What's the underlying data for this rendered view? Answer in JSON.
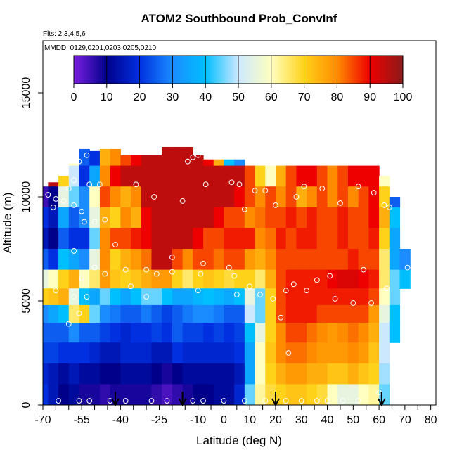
{
  "chart_data": {
    "type": "heatmap",
    "title": "ATOM2 Southbound Prob_ConvInf",
    "subtitle_flights": "Flts: 2,3,4,5,6",
    "subtitle_dates": "MMDD: 0129,0201,0203,0205,0210",
    "xlabel": "Latitude (deg N)",
    "ylabel": "Altitude (m)",
    "xlim": [
      -70,
      82
    ],
    "ylim": [
      0,
      17500
    ],
    "x_ticks": [
      -70,
      -55,
      -40,
      -25,
      -10,
      0,
      10,
      20,
      30,
      40,
      50,
      60,
      70,
      80
    ],
    "x_minor_ticks": [
      -65,
      -60,
      -50,
      -45,
      -35,
      -30,
      -20,
      -15,
      -5,
      5,
      15,
      25,
      35,
      45,
      55,
      65,
      75
    ],
    "y_ticks": [
      0,
      5000,
      10000,
      15000
    ],
    "colorbar": {
      "ticks": [
        0,
        10,
        20,
        30,
        40,
        50,
        60,
        70,
        80,
        90,
        100
      ],
      "range": [
        0,
        100
      ],
      "colors": [
        "#7a1fe0",
        "#00008b",
        "#0030e0",
        "#1a8cff",
        "#00bfff",
        "#cce8ff",
        "#ffffc0",
        "#ffd21a",
        "#ff8c00",
        "#ee0000",
        "#8b1a1a"
      ]
    },
    "arrows_lat": [
      -42,
      -16,
      20,
      61
    ],
    "curtain_columns": [
      {
        "lat": -69,
        "top": 10500
      },
      {
        "lat": -66,
        "top": 10700
      },
      {
        "lat": -62,
        "top": 11000
      },
      {
        "lat": -58,
        "top": 11600
      },
      {
        "lat": -54,
        "top": 12300
      },
      {
        "lat": -50,
        "top": 12200
      },
      {
        "lat": -46,
        "top": 12300
      },
      {
        "lat": -42,
        "top": 12300
      },
      {
        "lat": -38,
        "top": 12000
      },
      {
        "lat": -34,
        "top": 12000
      },
      {
        "lat": -30,
        "top": 12000
      },
      {
        "lat": -26,
        "top": 12000
      },
      {
        "lat": -22,
        "top": 12400
      },
      {
        "lat": -18,
        "top": 12400
      },
      {
        "lat": -14,
        "top": 12400
      },
      {
        "lat": -10,
        "top": 12000
      },
      {
        "lat": -6,
        "top": 11800
      },
      {
        "lat": -2,
        "top": 11800
      },
      {
        "lat": 2,
        "top": 11800
      },
      {
        "lat": 6,
        "top": 11800
      },
      {
        "lat": 10,
        "top": 11800
      },
      {
        "lat": 14,
        "top": 11800
      },
      {
        "lat": 18,
        "top": 11800
      },
      {
        "lat": 22,
        "top": 11500
      },
      {
        "lat": 26,
        "top": 11500
      },
      {
        "lat": 30,
        "top": 11500
      },
      {
        "lat": 34,
        "top": 11500
      },
      {
        "lat": 38,
        "top": 11500
      },
      {
        "lat": 42,
        "top": 11500
      },
      {
        "lat": 46,
        "top": 11500
      },
      {
        "lat": 50,
        "top": 11500
      },
      {
        "lat": 54,
        "top": 11500
      },
      {
        "lat": 58,
        "top": 11500
      },
      {
        "lat": 62,
        "top": 11000
      },
      {
        "lat": 66,
        "top": 10000
      },
      {
        "lat": 70,
        "top": 9000
      }
    ],
    "altitude_bands": [
      {
        "alt": 12000,
        "values": [
          95,
          95,
          85,
          60,
          25,
          20,
          75,
          80,
          85,
          90,
          95,
          95,
          95,
          95,
          95,
          95,
          90,
          75,
          40,
          30,
          0,
          0,
          0,
          0,
          0,
          0,
          0,
          0,
          0,
          0,
          0,
          0,
          0,
          0,
          0,
          0
        ]
      },
      {
        "alt": 11000,
        "values": [
          95,
          95,
          70,
          50,
          20,
          35,
          80,
          90,
          95,
          95,
          95,
          95,
          95,
          95,
          95,
          95,
          95,
          95,
          95,
          95,
          85,
          70,
          60,
          75,
          85,
          90,
          90,
          85,
          80,
          85,
          90,
          90,
          90,
          60,
          0,
          0
        ]
      },
      {
        "alt": 10000,
        "values": [
          5,
          10,
          55,
          45,
          30,
          60,
          85,
          80,
          75,
          80,
          95,
          95,
          95,
          95,
          95,
          95,
          95,
          95,
          95,
          90,
          85,
          80,
          85,
          80,
          85,
          75,
          80,
          85,
          80,
          85,
          80,
          85,
          90,
          70,
          25,
          0
        ]
      },
      {
        "alt": 9000,
        "values": [
          20,
          15,
          35,
          25,
          30,
          55,
          75,
          70,
          80,
          75,
          90,
          95,
          95,
          95,
          95,
          95,
          95,
          90,
          85,
          85,
          80,
          82,
          85,
          85,
          88,
          85,
          88,
          85,
          85,
          88,
          85,
          85,
          90,
          75,
          40,
          0
        ]
      },
      {
        "alt": 8000,
        "values": [
          15,
          10,
          25,
          20,
          20,
          45,
          80,
          85,
          85,
          88,
          90,
          95,
          95,
          95,
          95,
          90,
          85,
          85,
          88,
          88,
          88,
          80,
          82,
          88,
          85,
          88,
          88,
          85,
          85,
          88,
          85,
          85,
          88,
          70,
          35,
          0
        ]
      },
      {
        "alt": 7000,
        "values": [
          25,
          20,
          40,
          35,
          30,
          55,
          80,
          70,
          75,
          78,
          82,
          95,
          95,
          85,
          80,
          85,
          85,
          82,
          85,
          85,
          78,
          75,
          80,
          85,
          85,
          85,
          85,
          85,
          85,
          85,
          88,
          85,
          85,
          65,
          35,
          30
        ]
      },
      {
        "alt": 6000,
        "values": [
          55,
          60,
          70,
          75,
          60,
          65,
          78,
          72,
          70,
          72,
          75,
          78,
          78,
          70,
          65,
          70,
          72,
          70,
          68,
          70,
          70,
          65,
          75,
          85,
          88,
          88,
          88,
          88,
          90,
          92,
          92,
          90,
          88,
          65,
          45,
          40
        ]
      },
      {
        "alt": 5200,
        "values": [
          70,
          72,
          75,
          55,
          40,
          35,
          45,
          40,
          35,
          40,
          45,
          45,
          40,
          35,
          35,
          38,
          40,
          38,
          36,
          40,
          55,
          45,
          70,
          85,
          88,
          88,
          88,
          88,
          88,
          88,
          88,
          88,
          85,
          60,
          45,
          0
        ]
      },
      {
        "alt": 4400,
        "values": [
          30,
          35,
          40,
          65,
          70,
          45,
          30,
          28,
          25,
          25,
          28,
          25,
          22,
          25,
          28,
          30,
          30,
          28,
          25,
          25,
          50,
          45,
          70,
          85,
          88,
          88,
          88,
          85,
          85,
          85,
          85,
          85,
          78,
          55,
          40,
          0
        ]
      },
      {
        "alt": 3500,
        "values": [
          25,
          25,
          25,
          30,
          25,
          25,
          22,
          20,
          18,
          20,
          20,
          22,
          20,
          25,
          22,
          22,
          20,
          22,
          20,
          22,
          40,
          55,
          70,
          80,
          85,
          85,
          82,
          80,
          78,
          80,
          82,
          80,
          75,
          50,
          40,
          0
        ]
      },
      {
        "alt": 2500,
        "values": [
          22,
          22,
          20,
          20,
          20,
          18,
          15,
          15,
          18,
          18,
          18,
          15,
          15,
          20,
          18,
          18,
          18,
          18,
          18,
          20,
          35,
          60,
          72,
          80,
          82,
          82,
          80,
          78,
          78,
          78,
          80,
          78,
          72,
          50,
          0,
          0
        ]
      },
      {
        "alt": 1500,
        "values": [
          18,
          15,
          12,
          15,
          12,
          12,
          10,
          10,
          12,
          12,
          12,
          10,
          8,
          10,
          12,
          12,
          12,
          12,
          12,
          15,
          35,
          60,
          70,
          75,
          78,
          78,
          75,
          75,
          72,
          72,
          75,
          72,
          70,
          48,
          0,
          0
        ]
      },
      {
        "alt": 500,
        "values": [
          20,
          15,
          10,
          12,
          8,
          8,
          6,
          8,
          8,
          8,
          8,
          6,
          4,
          6,
          8,
          10,
          10,
          12,
          12,
          18,
          45,
          62,
          68,
          70,
          72,
          72,
          70,
          68,
          60,
          55,
          55,
          60,
          62,
          45,
          0,
          0
        ]
      }
    ],
    "observation_points": [
      {
        "lat": -56,
        "alt": 11700
      },
      {
        "lat": -53,
        "alt": 12000
      },
      {
        "lat": -58,
        "alt": 10800
      },
      {
        "lat": -52,
        "alt": 10600
      },
      {
        "lat": -48,
        "alt": 10600
      },
      {
        "lat": -60,
        "alt": 10400
      },
      {
        "lat": -68,
        "alt": 10100
      },
      {
        "lat": -65,
        "alt": 9900
      },
      {
        "lat": -62,
        "alt": 9800
      },
      {
        "lat": -58,
        "alt": 9600
      },
      {
        "lat": -66,
        "alt": 9500
      },
      {
        "lat": -55,
        "alt": 9300
      },
      {
        "lat": -54,
        "alt": 8800
      },
      {
        "lat": -50,
        "alt": 8800
      },
      {
        "lat": -46,
        "alt": 8900
      },
      {
        "lat": -42,
        "alt": 7700
      },
      {
        "lat": -58,
        "alt": 7400
      },
      {
        "lat": -34,
        "alt": 10600
      },
      {
        "lat": -27,
        "alt": 10000
      },
      {
        "lat": -16,
        "alt": 9800
      },
      {
        "lat": -14,
        "alt": 11700
      },
      {
        "lat": -12,
        "alt": 11900
      },
      {
        "lat": -10,
        "alt": 12000
      },
      {
        "lat": -7,
        "alt": 10600
      },
      {
        "lat": 3,
        "alt": 10700
      },
      {
        "lat": 6,
        "alt": 10600
      },
      {
        "lat": 8,
        "alt": 9400
      },
      {
        "lat": 12,
        "alt": 10300
      },
      {
        "lat": 16,
        "alt": 10300
      },
      {
        "lat": 20,
        "alt": 9600
      },
      {
        "lat": 28,
        "alt": 10000
      },
      {
        "lat": 31,
        "alt": 10500
      },
      {
        "lat": 38,
        "alt": 10400
      },
      {
        "lat": 45,
        "alt": 9700
      },
      {
        "lat": 52,
        "alt": 10500
      },
      {
        "lat": 58,
        "alt": 10200
      },
      {
        "lat": 62,
        "alt": 9600
      },
      {
        "lat": 64,
        "alt": 9500
      },
      {
        "lat": 66,
        "alt": 11300
      },
      {
        "lat": 68,
        "alt": 11200
      },
      {
        "lat": -20,
        "alt": 7100
      },
      {
        "lat": -8,
        "alt": 6800
      },
      {
        "lat": 2,
        "alt": 6600
      },
      {
        "lat": -30,
        "alt": 6500
      },
      {
        "lat": -38,
        "alt": 6500
      },
      {
        "lat": -50,
        "alt": 6600
      },
      {
        "lat": -55,
        "alt": 6100
      },
      {
        "lat": -46,
        "alt": 6300
      },
      {
        "lat": -26,
        "alt": 6300
      },
      {
        "lat": -20,
        "alt": 6400
      },
      {
        "lat": -9,
        "alt": 6300
      },
      {
        "lat": 4,
        "alt": 6200
      },
      {
        "lat": -65,
        "alt": 5500
      },
      {
        "lat": -58,
        "alt": 5200
      },
      {
        "lat": -53,
        "alt": 5200
      },
      {
        "lat": -36,
        "alt": 5700
      },
      {
        "lat": -30,
        "alt": 5200
      },
      {
        "lat": -60,
        "alt": 3900
      },
      {
        "lat": -56,
        "alt": 4400
      },
      {
        "lat": -10,
        "alt": 5500
      },
      {
        "lat": 5,
        "alt": 5300
      },
      {
        "lat": 10,
        "alt": 5700
      },
      {
        "lat": 14,
        "alt": 5300
      },
      {
        "lat": 19,
        "alt": 5100
      },
      {
        "lat": 22,
        "alt": 4200
      },
      {
        "lat": 24,
        "alt": 5500
      },
      {
        "lat": 27,
        "alt": 5800
      },
      {
        "lat": 32,
        "alt": 5500
      },
      {
        "lat": 36,
        "alt": 6000
      },
      {
        "lat": 41,
        "alt": 6200
      },
      {
        "lat": 43,
        "alt": 5100
      },
      {
        "lat": 50,
        "alt": 4900
      },
      {
        "lat": 54,
        "alt": 6500
      },
      {
        "lat": 57,
        "alt": 4900
      },
      {
        "lat": 63,
        "alt": 5600
      },
      {
        "lat": 71,
        "alt": 6600
      },
      {
        "lat": 25,
        "alt": 2500
      },
      {
        "lat": -64,
        "alt": 200
      },
      {
        "lat": -56,
        "alt": 200
      },
      {
        "lat": -52,
        "alt": 200
      },
      {
        "lat": -44,
        "alt": 200
      },
      {
        "lat": -38,
        "alt": 200
      },
      {
        "lat": -28,
        "alt": 200
      },
      {
        "lat": -22,
        "alt": 200
      },
      {
        "lat": -12,
        "alt": 200
      },
      {
        "lat": -8,
        "alt": 200
      },
      {
        "lat": 0,
        "alt": 200
      },
      {
        "lat": 8,
        "alt": 200
      },
      {
        "lat": 16,
        "alt": 200
      },
      {
        "lat": 24,
        "alt": 200
      },
      {
        "lat": 30,
        "alt": 200
      },
      {
        "lat": 36,
        "alt": 200
      },
      {
        "lat": 40,
        "alt": 200
      },
      {
        "lat": 46,
        "alt": 200
      },
      {
        "lat": 52,
        "alt": 200
      },
      {
        "lat": 60,
        "alt": 600
      },
      {
        "lat": 71,
        "alt": 700
      }
    ]
  }
}
